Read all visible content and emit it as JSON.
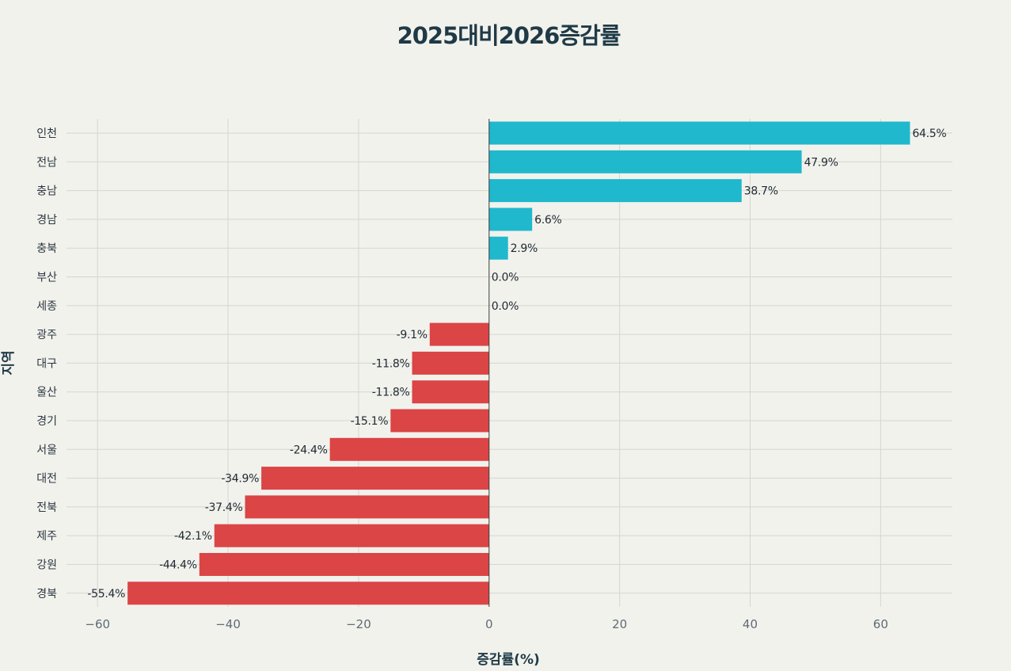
{
  "chart_data": {
    "type": "bar",
    "orientation": "horizontal",
    "title": "2025대비2026증감률",
    "xlabel": "증감률(%)",
    "ylabel": "지역",
    "xlim": [
      -65,
      71
    ],
    "xticks": [
      -60,
      -40,
      -20,
      0,
      20,
      40,
      60
    ],
    "xtick_labels": [
      "−60",
      "−40",
      "−20",
      "0",
      "20",
      "40",
      "60"
    ],
    "grid": true,
    "categories": [
      "인천",
      "전남",
      "충남",
      "경남",
      "충북",
      "부산",
      "세종",
      "광주",
      "대구",
      "울산",
      "경기",
      "서울",
      "대전",
      "전북",
      "제주",
      "강원",
      "경북"
    ],
    "values": [
      64.5,
      47.9,
      38.7,
      6.6,
      2.9,
      0.0,
      0.0,
      -9.1,
      -11.8,
      -11.8,
      -15.1,
      -24.4,
      -34.9,
      -37.4,
      -42.1,
      -44.4,
      -55.4
    ],
    "value_labels": [
      "64.5%",
      "47.9%",
      "38.7%",
      "6.6%",
      "2.9%",
      "0.0%",
      "0.0%",
      "-9.1%",
      "-11.8%",
      "-11.8%",
      "-15.1%",
      "-24.4%",
      "-34.9%",
      "-37.4%",
      "-42.1%",
      "-44.4%",
      "-55.4%"
    ],
    "colors": {
      "positive": "#1fb8cd",
      "negative": "#db4545",
      "grid": "#d6d6d0",
      "zero_line": "#3c3c3c"
    }
  }
}
